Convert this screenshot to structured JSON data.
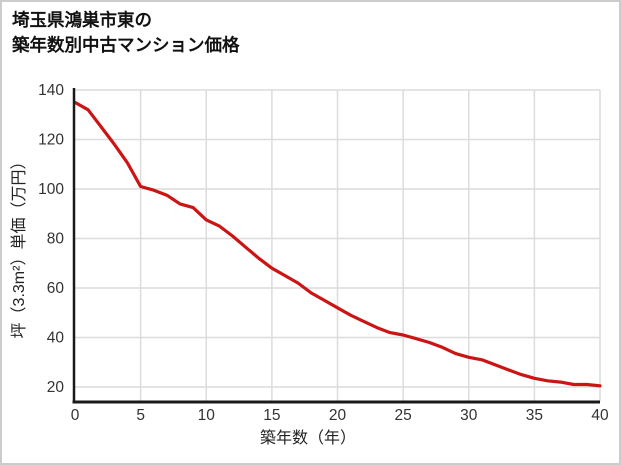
{
  "title": {
    "line1": "埼玉県鴻巣市東の",
    "line2": "築年数別中古マンション価格"
  },
  "chart_data": {
    "type": "line",
    "title": "埼玉県鴻巣市東の築年数別中古マンション価格",
    "xlabel": "築年数（年）",
    "ylabel": "坪（3.3m²）単価（万円）",
    "x": [
      0,
      1,
      2,
      3,
      4,
      5,
      6,
      7,
      8,
      9,
      10,
      11,
      12,
      13,
      14,
      15,
      16,
      17,
      18,
      19,
      20,
      21,
      22,
      23,
      24,
      25,
      26,
      27,
      28,
      29,
      30,
      31,
      32,
      33,
      34,
      35,
      36,
      37,
      38,
      39,
      40
    ],
    "values": [
      135,
      132,
      125,
      118,
      110.5,
      101,
      99.5,
      97.5,
      94,
      92.5,
      87.5,
      85,
      81,
      76.5,
      72,
      68,
      65,
      62,
      58,
      55,
      52,
      49,
      46.5,
      44,
      42,
      41,
      39.5,
      38,
      36,
      33.5,
      32,
      31,
      29,
      27,
      25,
      23.5,
      22.5,
      22,
      21,
      21,
      20.5
    ],
    "x_ticks": [
      0,
      5,
      10,
      15,
      20,
      25,
      30,
      35,
      40
    ],
    "y_ticks": [
      20,
      40,
      60,
      80,
      100,
      120,
      140
    ],
    "xlim": [
      0,
      40
    ],
    "ylim": [
      13.5,
      140
    ],
    "grid": true,
    "legend_position": "none",
    "line_color": "#cc1414",
    "axis_color": "#1a1a1a",
    "grid_color": "#dcdcdc",
    "tick_label_color": "#333333"
  }
}
